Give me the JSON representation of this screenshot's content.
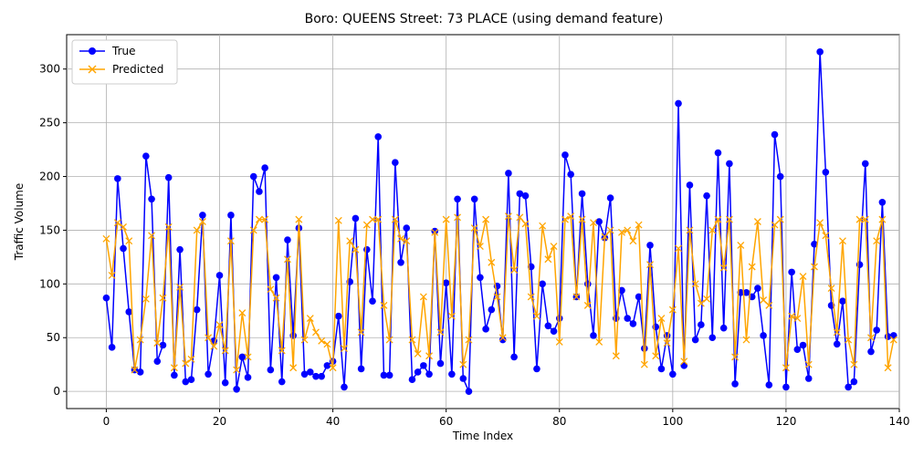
{
  "colors": {
    "true_series": "#0000ff",
    "predicted_series": "#ffa500",
    "grid": "#b0b0b0"
  },
  "chart_data": {
    "type": "line",
    "title": "Boro: QUEENS Street: 73 PLACE (using demand feature)",
    "xlabel": "Time Index",
    "ylabel": "Traffic Volume",
    "xlim": [
      -7,
      140
    ],
    "ylim": [
      -16,
      332
    ],
    "xticks": [
      0,
      20,
      40,
      60,
      80,
      100,
      120,
      140
    ],
    "yticks": [
      0,
      50,
      100,
      150,
      200,
      250,
      300
    ],
    "grid": true,
    "legend_position": "upper-left",
    "series": [
      {
        "name": "True",
        "color": "#0000ff",
        "marker": "circle",
        "values": [
          87,
          41,
          198,
          133,
          74,
          20,
          18,
          219,
          179,
          28,
          43,
          199,
          15,
          132,
          9,
          11,
          76,
          164,
          16,
          47,
          108,
          8,
          164,
          2,
          32,
          13,
          200,
          186,
          208,
          20,
          106,
          9,
          141,
          52,
          152,
          16,
          18,
          14,
          14,
          24,
          28,
          70,
          4,
          102,
          161,
          21,
          132,
          84,
          237,
          15,
          15,
          213,
          120,
          152,
          11,
          18,
          24,
          16,
          149,
          26,
          101,
          16,
          179,
          12,
          0,
          179,
          106,
          58,
          76,
          98,
          48,
          203,
          32,
          184,
          182,
          116,
          21,
          100,
          61,
          56,
          68,
          220,
          202,
          88,
          184,
          100,
          52,
          158,
          143,
          180,
          68,
          94,
          68,
          63,
          88,
          40,
          136,
          60,
          21,
          52,
          16,
          268,
          24,
          192,
          48,
          62,
          182,
          50,
          222,
          59,
          212,
          7,
          92,
          92,
          88,
          96,
          52,
          6,
          239,
          200,
          4,
          111,
          39,
          43,
          12,
          137,
          316,
          204,
          80,
          44,
          84,
          4,
          9,
          118,
          212,
          37,
          57,
          176,
          51,
          52
        ]
      },
      {
        "name": "Predicted",
        "color": "#ffa500",
        "marker": "x",
        "values": [
          142,
          108,
          157,
          153,
          140,
          20,
          48,
          86,
          145,
          45,
          87,
          153,
          22,
          97,
          26,
          30,
          150,
          158,
          50,
          42,
          62,
          38,
          140,
          20,
          73,
          32,
          150,
          160,
          160,
          95,
          87,
          38,
          123,
          22,
          160,
          48,
          68,
          55,
          47,
          44,
          22,
          159,
          40,
          140,
          132,
          55,
          155,
          160,
          160,
          80,
          48,
          160,
          142,
          140,
          48,
          35,
          88,
          33,
          148,
          55,
          160,
          70,
          162,
          25,
          48,
          152,
          135,
          160,
          120,
          88,
          50,
          163,
          113,
          162,
          156,
          88,
          70,
          154,
          123,
          135,
          46,
          160,
          163,
          88,
          160,
          80,
          157,
          46,
          144,
          150,
          33,
          148,
          150,
          140,
          155,
          25,
          118,
          33,
          68,
          45,
          76,
          133,
          28,
          150,
          100,
          82,
          86,
          150,
          160,
          115,
          160,
          32,
          136,
          48,
          116,
          158,
          85,
          80,
          155,
          160,
          22,
          70,
          68,
          107,
          25,
          116,
          157,
          145,
          96,
          55,
          140,
          48,
          25,
          160,
          160,
          50,
          140,
          160,
          22,
          48
        ]
      }
    ]
  }
}
